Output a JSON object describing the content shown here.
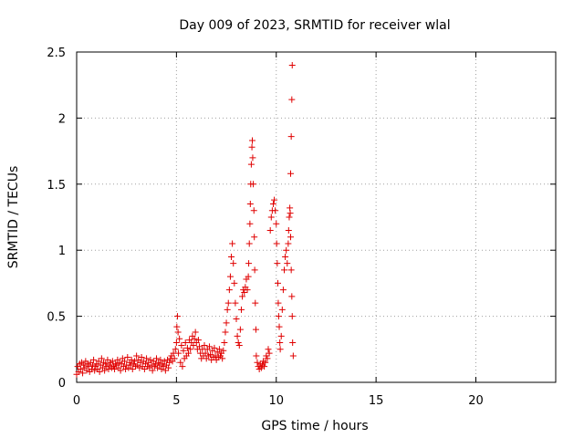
{
  "chart_data": {
    "type": "scatter",
    "title": "Day 009 of 2023, SRMTID for receiver wlal",
    "xlabel": "GPS time / hours",
    "ylabel": "SRMTID / TECUs",
    "xlim": [
      0,
      24
    ],
    "ylim": [
      0,
      2.5
    ],
    "xticks": [
      0,
      5,
      10,
      15,
      20
    ],
    "xtick_labels": [
      "0",
      "5",
      "10",
      "15",
      "20"
    ],
    "yticks": [
      0,
      0.5,
      1,
      1.5,
      2,
      2.5
    ],
    "ytick_labels": [
      "0",
      "0.5",
      "1",
      "1.5",
      "2",
      "2.5"
    ],
    "grid": true,
    "marker": "+",
    "series": [
      {
        "name": "SRMTID",
        "color": "#e00000",
        "points": [
          [
            0.0,
            0.06
          ],
          [
            0.05,
            0.12
          ],
          [
            0.1,
            0.08
          ],
          [
            0.15,
            0.14
          ],
          [
            0.2,
            0.1
          ],
          [
            0.25,
            0.15
          ],
          [
            0.3,
            0.07
          ],
          [
            0.35,
            0.13
          ],
          [
            0.4,
            0.11
          ],
          [
            0.45,
            0.16
          ],
          [
            0.5,
            0.09
          ],
          [
            0.55,
            0.14
          ],
          [
            0.6,
            0.12
          ],
          [
            0.65,
            0.08
          ],
          [
            0.7,
            0.15
          ],
          [
            0.75,
            0.1
          ],
          [
            0.8,
            0.13
          ],
          [
            0.85,
            0.17
          ],
          [
            0.9,
            0.09
          ],
          [
            0.95,
            0.12
          ],
          [
            1.0,
            0.14
          ],
          [
            1.05,
            0.1
          ],
          [
            1.1,
            0.16
          ],
          [
            1.15,
            0.08
          ],
          [
            1.2,
            0.13
          ],
          [
            1.25,
            0.18
          ],
          [
            1.3,
            0.11
          ],
          [
            1.35,
            0.15
          ],
          [
            1.4,
            0.09
          ],
          [
            1.45,
            0.14
          ],
          [
            1.5,
            0.12
          ],
          [
            1.55,
            0.17
          ],
          [
            1.6,
            0.1
          ],
          [
            1.65,
            0.13
          ],
          [
            1.7,
            0.15
          ],
          [
            1.75,
            0.11
          ],
          [
            1.8,
            0.16
          ],
          [
            1.85,
            0.12
          ],
          [
            1.9,
            0.1
          ],
          [
            1.95,
            0.14
          ],
          [
            2.0,
            0.13
          ],
          [
            2.05,
            0.17
          ],
          [
            2.1,
            0.11
          ],
          [
            2.15,
            0.15
          ],
          [
            2.2,
            0.09
          ],
          [
            2.25,
            0.14
          ],
          [
            2.3,
            0.18
          ],
          [
            2.35,
            0.12
          ],
          [
            2.4,
            0.16
          ],
          [
            2.45,
            0.1
          ],
          [
            2.5,
            0.13
          ],
          [
            2.55,
            0.19
          ],
          [
            2.6,
            0.11
          ],
          [
            2.65,
            0.15
          ],
          [
            2.7,
            0.13
          ],
          [
            2.75,
            0.17
          ],
          [
            2.8,
            0.1
          ],
          [
            2.85,
            0.14
          ],
          [
            2.9,
            0.16
          ],
          [
            2.95,
            0.12
          ],
          [
            3.0,
            0.2
          ],
          [
            3.05,
            0.13
          ],
          [
            3.1,
            0.17
          ],
          [
            3.15,
            0.11
          ],
          [
            3.2,
            0.15
          ],
          [
            3.25,
            0.19
          ],
          [
            3.3,
            0.12
          ],
          [
            3.35,
            0.16
          ],
          [
            3.4,
            0.1
          ],
          [
            3.45,
            0.14
          ],
          [
            3.5,
            0.18
          ],
          [
            3.55,
            0.12
          ],
          [
            3.6,
            0.15
          ],
          [
            3.65,
            0.11
          ],
          [
            3.7,
            0.17
          ],
          [
            3.75,
            0.13
          ],
          [
            3.8,
            0.09
          ],
          [
            3.85,
            0.16
          ],
          [
            3.9,
            0.12
          ],
          [
            3.95,
            0.14
          ],
          [
            4.0,
            0.18
          ],
          [
            4.05,
            0.11
          ],
          [
            4.1,
            0.15
          ],
          [
            4.15,
            0.13
          ],
          [
            4.2,
            0.17
          ],
          [
            4.25,
            0.1
          ],
          [
            4.3,
            0.14
          ],
          [
            4.35,
            0.12
          ],
          [
            4.4,
            0.16
          ],
          [
            4.45,
            0.09
          ],
          [
            4.5,
            0.13
          ],
          [
            4.55,
            0.17
          ],
          [
            4.6,
            0.11
          ],
          [
            4.65,
            0.15
          ],
          [
            4.7,
            0.18
          ],
          [
            4.75,
            0.2
          ],
          [
            4.8,
            0.16
          ],
          [
            4.85,
            0.22
          ],
          [
            4.9,
            0.18
          ],
          [
            4.95,
            0.25
          ],
          [
            5.0,
            0.3
          ],
          [
            5.02,
            0.42
          ],
          [
            5.05,
            0.5
          ],
          [
            5.08,
            0.38
          ],
          [
            5.1,
            0.22
          ],
          [
            5.15,
            0.33
          ],
          [
            5.2,
            0.15
          ],
          [
            5.25,
            0.28
          ],
          [
            5.3,
            0.12
          ],
          [
            5.35,
            0.24
          ],
          [
            5.4,
            0.18
          ],
          [
            5.45,
            0.3
          ],
          [
            5.5,
            0.2
          ],
          [
            5.55,
            0.26
          ],
          [
            5.6,
            0.22
          ],
          [
            5.65,
            0.32
          ],
          [
            5.7,
            0.25
          ],
          [
            5.75,
            0.3
          ],
          [
            5.8,
            0.35
          ],
          [
            5.85,
            0.28
          ],
          [
            5.9,
            0.33
          ],
          [
            5.95,
            0.38
          ],
          [
            6.0,
            0.3
          ],
          [
            6.05,
            0.25
          ],
          [
            6.1,
            0.32
          ],
          [
            6.15,
            0.27
          ],
          [
            6.2,
            0.22
          ],
          [
            6.25,
            0.18
          ],
          [
            6.3,
            0.25
          ],
          [
            6.35,
            0.2
          ],
          [
            6.4,
            0.28
          ],
          [
            6.45,
            0.22
          ],
          [
            6.5,
            0.18
          ],
          [
            6.55,
            0.25
          ],
          [
            6.6,
            0.2
          ],
          [
            6.65,
            0.27
          ],
          [
            6.7,
            0.21
          ],
          [
            6.75,
            0.17
          ],
          [
            6.8,
            0.24
          ],
          [
            6.85,
            0.19
          ],
          [
            6.9,
            0.26
          ],
          [
            6.95,
            0.2
          ],
          [
            7.0,
            0.17
          ],
          [
            7.05,
            0.23
          ],
          [
            7.1,
            0.19
          ],
          [
            7.15,
            0.25
          ],
          [
            7.2,
            0.2
          ],
          [
            7.25,
            0.22
          ],
          [
            7.3,
            0.18
          ],
          [
            7.35,
            0.24
          ],
          [
            7.4,
            0.3
          ],
          [
            7.45,
            0.38
          ],
          [
            7.5,
            0.45
          ],
          [
            7.55,
            0.55
          ],
          [
            7.6,
            0.6
          ],
          [
            7.65,
            0.7
          ],
          [
            7.7,
            0.8
          ],
          [
            7.75,
            0.95
          ],
          [
            7.8,
            1.05
          ],
          [
            7.85,
            0.9
          ],
          [
            7.9,
            0.75
          ],
          [
            7.95,
            0.6
          ],
          [
            8.0,
            0.48
          ],
          [
            8.05,
            0.35
          ],
          [
            8.1,
            0.3
          ],
          [
            8.15,
            0.28
          ],
          [
            8.2,
            0.4
          ],
          [
            8.25,
            0.55
          ],
          [
            8.3,
            0.65
          ],
          [
            8.35,
            0.7
          ],
          [
            8.4,
            0.68
          ],
          [
            8.45,
            0.72
          ],
          [
            8.5,
            0.78
          ],
          [
            8.55,
            0.7
          ],
          [
            8.6,
            0.8
          ],
          [
            8.62,
            0.9
          ],
          [
            8.65,
            1.05
          ],
          [
            8.68,
            1.2
          ],
          [
            8.7,
            1.35
          ],
          [
            8.72,
            1.5
          ],
          [
            8.75,
            1.65
          ],
          [
            8.78,
            1.78
          ],
          [
            8.8,
            1.83
          ],
          [
            8.82,
            1.7
          ],
          [
            8.85,
            1.5
          ],
          [
            8.88,
            1.3
          ],
          [
            8.9,
            1.1
          ],
          [
            8.92,
            0.85
          ],
          [
            8.95,
            0.6
          ],
          [
            8.98,
            0.4
          ],
          [
            9.0,
            0.2
          ],
          [
            9.05,
            0.15
          ],
          [
            9.1,
            0.12
          ],
          [
            9.15,
            0.1
          ],
          [
            9.2,
            0.14
          ],
          [
            9.25,
            0.11
          ],
          [
            9.3,
            0.13
          ],
          [
            9.35,
            0.16
          ],
          [
            9.4,
            0.12
          ],
          [
            9.45,
            0.15
          ],
          [
            9.5,
            0.2
          ],
          [
            9.55,
            0.18
          ],
          [
            9.6,
            0.25
          ],
          [
            9.65,
            0.22
          ],
          [
            9.7,
            1.15
          ],
          [
            9.75,
            1.25
          ],
          [
            9.8,
            1.3
          ],
          [
            9.85,
            1.35
          ],
          [
            9.9,
            1.38
          ],
          [
            9.95,
            1.3
          ],
          [
            10.0,
            1.2
          ],
          [
            10.02,
            1.05
          ],
          [
            10.05,
            0.9
          ],
          [
            10.08,
            0.75
          ],
          [
            10.1,
            0.6
          ],
          [
            10.12,
            0.5
          ],
          [
            10.15,
            0.42
          ],
          [
            10.18,
            0.3
          ],
          [
            10.2,
            0.25
          ],
          [
            10.25,
            0.35
          ],
          [
            10.3,
            0.55
          ],
          [
            10.35,
            0.7
          ],
          [
            10.4,
            0.85
          ],
          [
            10.45,
            0.95
          ],
          [
            10.5,
            1.0
          ],
          [
            10.55,
            0.9
          ],
          [
            10.6,
            1.05
          ],
          [
            10.62,
            1.15
          ],
          [
            10.65,
            1.25
          ],
          [
            10.68,
            1.32
          ],
          [
            10.7,
            1.28
          ],
          [
            10.72,
            1.1
          ],
          [
            10.75,
            0.85
          ],
          [
            10.78,
            0.65
          ],
          [
            10.8,
            0.5
          ],
          [
            10.82,
            0.3
          ],
          [
            10.85,
            0.2
          ],
          [
            10.72,
            1.58
          ],
          [
            10.75,
            1.86
          ],
          [
            10.78,
            2.14
          ],
          [
            10.8,
            2.4
          ]
        ]
      }
    ]
  }
}
